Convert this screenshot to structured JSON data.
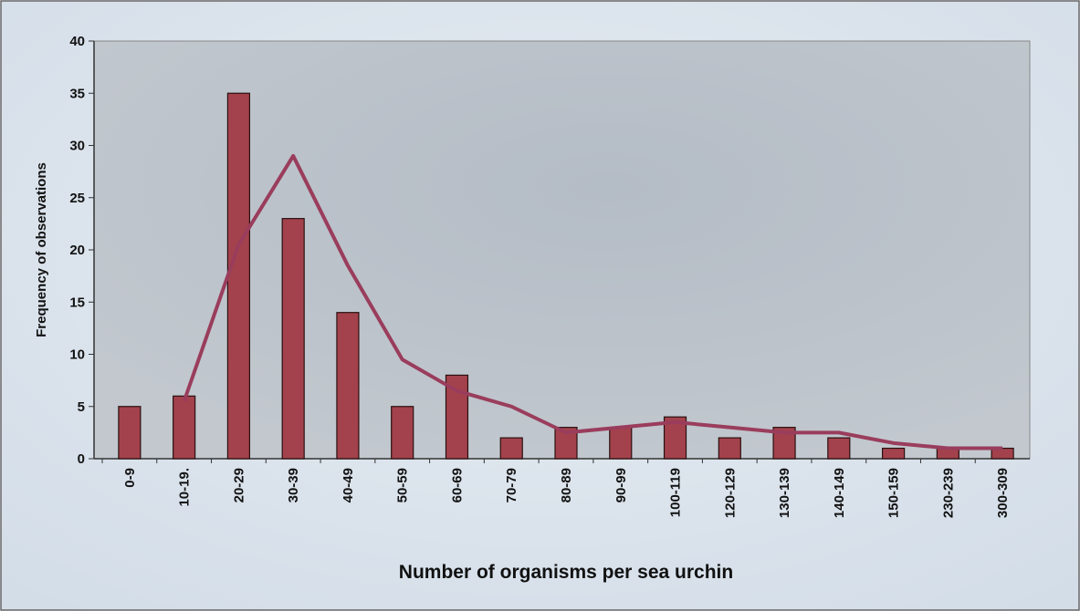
{
  "chart_data": {
    "type": "bar",
    "xlabel": "Number of organisms per sea urchin",
    "ylabel": "Frequency of observations",
    "categories": [
      "0-9",
      "10-19.",
      "20-29",
      "30-39",
      "40-49",
      "50-59",
      "60-69",
      "70-79",
      "80-89",
      "90-99",
      "100-119",
      "120-129",
      "130-139",
      "140-149",
      "150-159",
      "230-239",
      "300-309"
    ],
    "series": [
      {
        "type": "bar",
        "color": "#a3424c",
        "values": [
          5,
          6,
          35,
          23,
          14,
          5,
          8,
          2,
          3,
          3,
          4,
          2,
          3,
          2,
          1,
          1,
          1
        ]
      },
      {
        "type": "line",
        "color": "#9a3d5c",
        "values": [
          null,
          5.5,
          20.5,
          29,
          18.5,
          9.5,
          6.5,
          5,
          2.5,
          3,
          3.5,
          3,
          2.5,
          2.5,
          1.5,
          1,
          1
        ]
      }
    ],
    "ylim": [
      0,
      40
    ],
    "yticks": [
      0,
      5,
      10,
      15,
      20,
      25,
      30,
      35,
      40
    ],
    "grid": false
  }
}
